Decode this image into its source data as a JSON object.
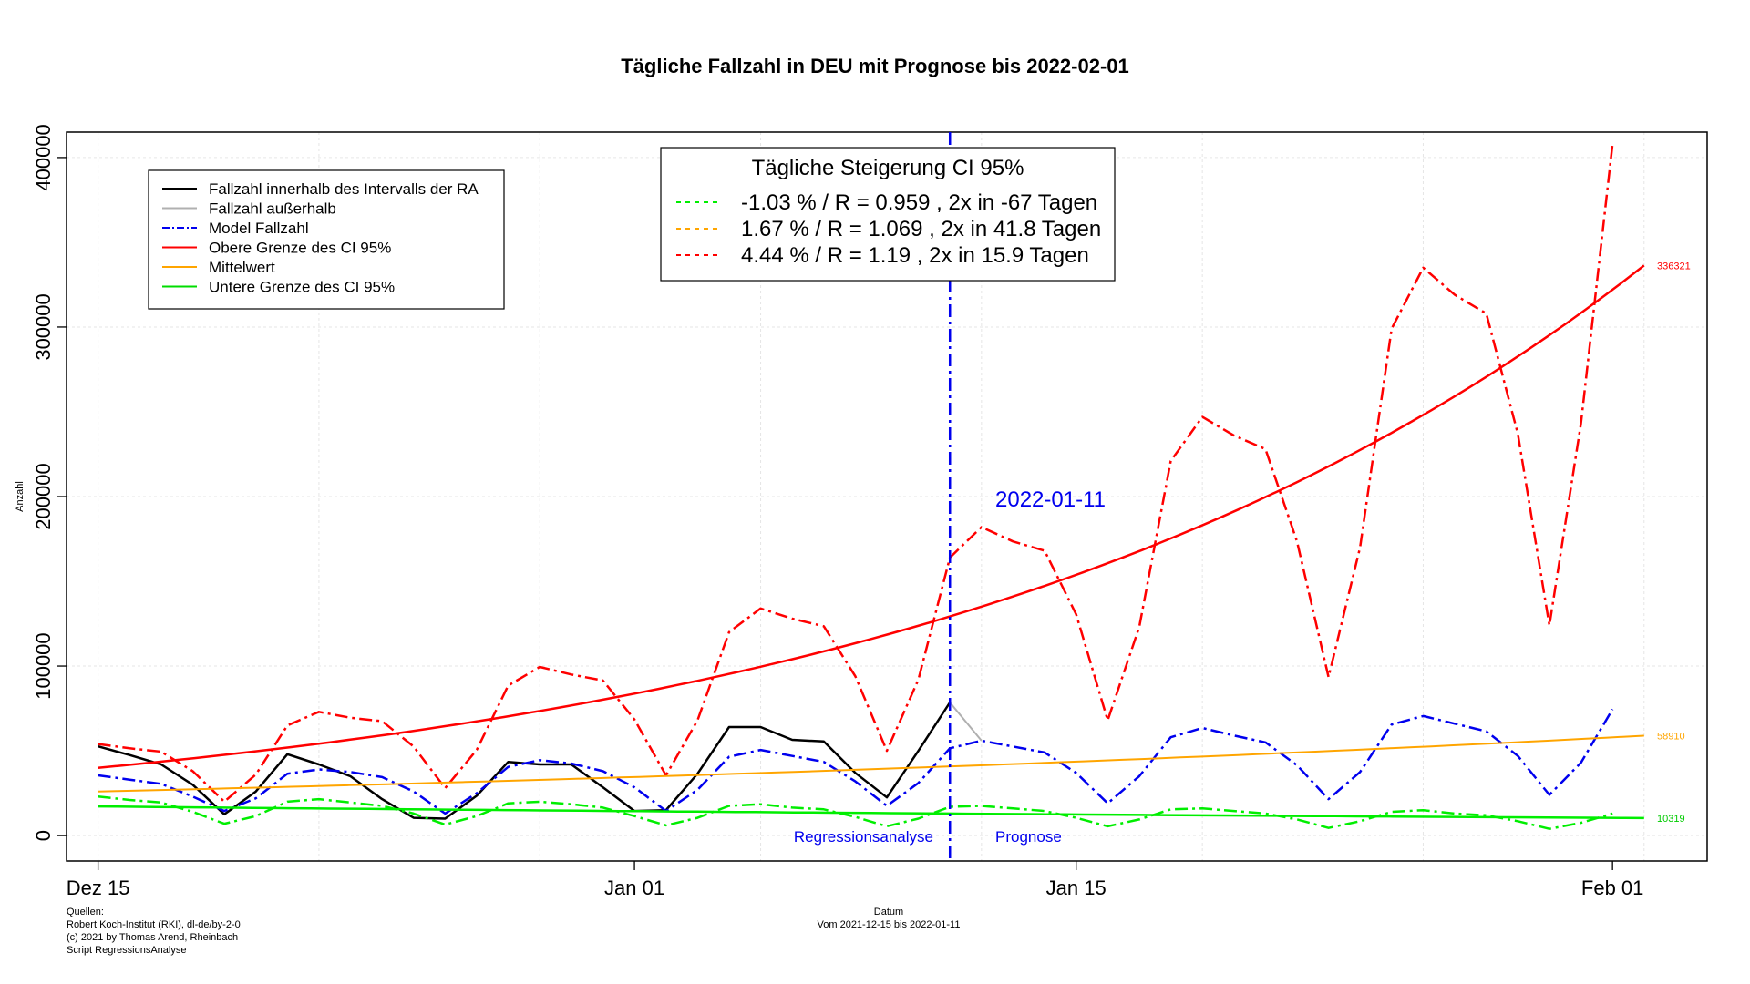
{
  "chart_data": {
    "type": "line",
    "title": "Tägliche Fallzahl in DEU mit Prognose bis 2022-02-01",
    "xlabel": "Datum",
    "xlabel_sub": "Vom 2021-12-15 bis 2022-01-11",
    "ylabel": "Anzahl",
    "x_range": [
      "2021-12-14",
      "2022-02-04"
    ],
    "ylim": [
      -15000,
      415000
    ],
    "grid": true,
    "x_ticks": [
      {
        "date": "2021-12-15",
        "label": "Dez 15"
      },
      {
        "date": "2022-01-01",
        "label": "Jan 01"
      },
      {
        "date": "2022-01-15",
        "label": "Jan 15"
      },
      {
        "date": "2022-02-01",
        "label": "Feb 01"
      }
    ],
    "y_ticks": [
      {
        "value": 0,
        "label": "0"
      },
      {
        "value": 100000,
        "label": "100000"
      },
      {
        "value": 200000,
        "label": "200000"
      },
      {
        "value": 300000,
        "label": "300000"
      },
      {
        "value": 400000,
        "label": "400000"
      }
    ],
    "vline": {
      "date": "2022-01-11",
      "label": "2022-01-11",
      "color": "#0000ee",
      "left_label": "Regressionsanalyse",
      "right_label": "Prognose"
    },
    "legend": {
      "position": "top-left",
      "entries": [
        {
          "label": "Fallzahl innerhalb des Intervalls der RA",
          "color": "#000000",
          "dash": "solid"
        },
        {
          "label": "Fallzahl außerhalb",
          "color": "#b0b0b0",
          "dash": "solid"
        },
        {
          "label": "Model Fallzahl",
          "color": "#0000ee",
          "dash": "dashdot"
        },
        {
          "label": "Obere Grenze des CI 95%",
          "color": "#ff0000",
          "dash": "solid"
        },
        {
          "label": "Mittelwert",
          "color": "#ffa500",
          "dash": "solid"
        },
        {
          "label": "Untere Grenze des CI 95%",
          "color": "#00dd00",
          "dash": "solid"
        }
      ]
    },
    "ci_box": {
      "title": "Tägliche Steigerung CI  95%",
      "position": "top-center",
      "entries": [
        {
          "label": "-1.03 % / R = 0.959 , 2x in -67 Tagen",
          "color": "#00ee00"
        },
        {
          "label": "1.67 % / R = 1.069 , 2x in 41.8 Tagen",
          "color": "#ffa500"
        },
        {
          "label": "4.44 % / R = 1.19 , 2x in 15.9 Tagen",
          "color": "#ff0000"
        }
      ]
    },
    "end_labels": [
      {
        "value": 336321,
        "label": "336321",
        "color": "#ff0000"
      },
      {
        "value": 58910,
        "label": "58910",
        "color": "#ffa500"
      },
      {
        "value": 10319,
        "label": "10319",
        "color": "#00cc00"
      }
    ],
    "series": [
      {
        "name": "Fallzahl innerhalb des Intervalls der RA",
        "color": "#000000",
        "dash": "solid",
        "width": 2.5,
        "x": [
          "2021-12-15",
          "2021-12-16",
          "2021-12-17",
          "2021-12-18",
          "2021-12-19",
          "2021-12-20",
          "2021-12-21",
          "2021-12-22",
          "2021-12-23",
          "2021-12-24",
          "2021-12-25",
          "2021-12-26",
          "2021-12-27",
          "2021-12-28",
          "2021-12-29",
          "2021-12-30",
          "2021-12-31",
          "2022-01-01",
          "2022-01-02",
          "2022-01-03",
          "2022-01-04",
          "2022-01-05",
          "2022-01-06",
          "2022-01-07",
          "2022-01-08",
          "2022-01-09",
          "2022-01-10",
          "2022-01-11"
        ],
        "y": [
          52600,
          47500,
          42000,
          30000,
          12500,
          26000,
          48000,
          42000,
          35000,
          21500,
          10500,
          10000,
          23500,
          43500,
          42000,
          42000,
          28500,
          14500,
          15000,
          36500,
          64000,
          64000,
          56500,
          55500,
          37000,
          22500,
          50000,
          78500
        ]
      },
      {
        "name": "Fallzahl außerhalb",
        "color": "#b0b0b0",
        "dash": "solid",
        "width": 2,
        "x": [
          "2022-01-11",
          "2022-01-12"
        ],
        "y": [
          78500,
          56000
        ]
      },
      {
        "name": "Model Fallzahl",
        "color": "#0000ee",
        "dash": "dashdot",
        "width": 2.5,
        "x": [
          "2021-12-15",
          "2021-12-16",
          "2021-12-17",
          "2021-12-18",
          "2021-12-19",
          "2021-12-20",
          "2021-12-21",
          "2021-12-22",
          "2021-12-23",
          "2021-12-24",
          "2021-12-25",
          "2021-12-26",
          "2021-12-27",
          "2021-12-28",
          "2021-12-29",
          "2021-12-30",
          "2021-12-31",
          "2022-01-01",
          "2022-01-02",
          "2022-01-03",
          "2022-01-04",
          "2022-01-05",
          "2022-01-06",
          "2022-01-07",
          "2022-01-08",
          "2022-01-09",
          "2022-01-10",
          "2022-01-11",
          "2022-01-12",
          "2022-01-13",
          "2022-01-14",
          "2022-01-15",
          "2022-01-16",
          "2022-01-17",
          "2022-01-18",
          "2022-01-19",
          "2022-01-20",
          "2022-01-21",
          "2022-01-22",
          "2022-01-23",
          "2022-01-24",
          "2022-01-25",
          "2022-01-26",
          "2022-01-27",
          "2022-01-28",
          "2022-01-29",
          "2022-01-30",
          "2022-01-31",
          "2022-02-01"
        ],
        "y": [
          35500,
          33000,
          30500,
          23000,
          14500,
          22000,
          36500,
          39000,
          37500,
          34500,
          26000,
          13000,
          25000,
          40500,
          44500,
          42500,
          38000,
          28500,
          14500,
          27000,
          46500,
          50500,
          47000,
          43500,
          32000,
          17500,
          31000,
          51500,
          56000,
          52500,
          49000,
          37000,
          19000,
          35000,
          58000,
          63500,
          59000,
          55000,
          41500,
          21500,
          37500,
          65500,
          70500,
          66000,
          61500,
          47000,
          24000,
          43000,
          74500
        ]
      },
      {
        "name": "Obere Grenze des CI 95%",
        "color": "#ff0000",
        "dash": "solid",
        "width": 2.5,
        "x": [
          "2021-12-15",
          "2022-02-02"
        ],
        "y": [
          40000,
          336321
        ],
        "curve": "exponential"
      },
      {
        "name": "Upper model",
        "color": "#ff0000",
        "dash": "dashdot",
        "width": 2.5,
        "x": [
          "2021-12-15",
          "2021-12-16",
          "2021-12-17",
          "2021-12-18",
          "2021-12-19",
          "2021-12-20",
          "2021-12-21",
          "2021-12-22",
          "2021-12-23",
          "2021-12-24",
          "2021-12-25",
          "2021-12-26",
          "2021-12-27",
          "2021-12-28",
          "2021-12-29",
          "2021-12-30",
          "2021-12-31",
          "2022-01-01",
          "2022-01-02",
          "2022-01-03",
          "2022-01-04",
          "2022-01-05",
          "2022-01-06",
          "2022-01-07",
          "2022-01-08",
          "2022-01-09",
          "2022-01-10",
          "2022-01-11",
          "2022-01-12",
          "2022-01-13",
          "2022-01-14",
          "2022-01-15",
          "2022-01-16",
          "2022-01-17",
          "2022-01-18",
          "2022-01-19",
          "2022-01-20",
          "2022-01-21",
          "2022-01-22",
          "2022-01-23",
          "2022-01-24",
          "2022-01-25",
          "2022-01-26",
          "2022-01-27",
          "2022-01-28",
          "2022-01-29",
          "2022-01-30",
          "2022-01-31",
          "2022-02-01"
        ],
        "y": [
          54000,
          51500,
          49500,
          38000,
          20000,
          36000,
          65000,
          73000,
          69500,
          67500,
          52500,
          28000,
          50500,
          88500,
          99500,
          95000,
          91500,
          68500,
          35500,
          68000,
          120000,
          134000,
          128000,
          123500,
          94000,
          50000,
          92000,
          164000,
          182000,
          173500,
          168000,
          130500,
          68000,
          123000,
          221000,
          247000,
          236000,
          228000,
          173500,
          93500,
          170000,
          299000,
          335000,
          319000,
          308000,
          237000,
          124000,
          243000,
          408000
        ]
      },
      {
        "name": "Mittelwert",
        "color": "#ffa500",
        "dash": "solid",
        "width": 2,
        "x": [
          "2021-12-15",
          "2022-02-02"
        ],
        "y": [
          26000,
          58910
        ],
        "curve": "exponential"
      },
      {
        "name": "Untere Grenze des CI 95%",
        "color": "#00ee00",
        "dash": "solid",
        "width": 2.5,
        "x": [
          "2021-12-15",
          "2022-02-02"
        ],
        "y": [
          17200,
          10319
        ],
        "curve": "exponential"
      },
      {
        "name": "Lower model",
        "color": "#00ee00",
        "dash": "dashdot",
        "width": 2.5,
        "x": [
          "2021-12-15",
          "2021-12-16",
          "2021-12-17",
          "2021-12-18",
          "2021-12-19",
          "2021-12-20",
          "2021-12-21",
          "2021-12-22",
          "2021-12-23",
          "2021-12-24",
          "2021-12-25",
          "2021-12-26",
          "2021-12-27",
          "2021-12-28",
          "2021-12-29",
          "2021-12-30",
          "2021-12-31",
          "2022-01-01",
          "2022-01-02",
          "2022-01-03",
          "2022-01-04",
          "2022-01-05",
          "2022-01-06",
          "2022-01-07",
          "2022-01-08",
          "2022-01-09",
          "2022-01-10",
          "2022-01-11",
          "2022-01-12",
          "2022-01-13",
          "2022-01-14",
          "2022-01-15",
          "2022-01-16",
          "2022-01-17",
          "2022-01-18",
          "2022-01-19",
          "2022-01-20",
          "2022-01-21",
          "2022-01-22",
          "2022-01-23",
          "2022-01-24",
          "2022-01-25",
          "2022-01-26",
          "2022-01-27",
          "2022-01-28",
          "2022-01-29",
          "2022-01-30",
          "2022-01-31",
          "2022-02-01"
        ],
        "y": [
          23000,
          21000,
          19500,
          14000,
          7000,
          11500,
          20000,
          21500,
          19500,
          17500,
          13000,
          6500,
          11500,
          19000,
          20000,
          18500,
          16500,
          11500,
          6000,
          10500,
          17500,
          18500,
          16500,
          15500,
          11000,
          5500,
          10000,
          17000,
          17500,
          16000,
          14500,
          10500,
          5500,
          9500,
          15500,
          16000,
          14500,
          13000,
          9500,
          4500,
          8500,
          14000,
          15000,
          13000,
          12000,
          8500,
          4000,
          7500,
          13000
        ]
      }
    ]
  },
  "footer": {
    "sources_title": "Quellen:",
    "source_line1": "Robert Koch-Institut (RKI), dl-de/by-2-0",
    "source_line2": "(c) 2021 by Thomas Arend, Rheinbach",
    "source_line3": "Script RegressionsAnalyse"
  }
}
